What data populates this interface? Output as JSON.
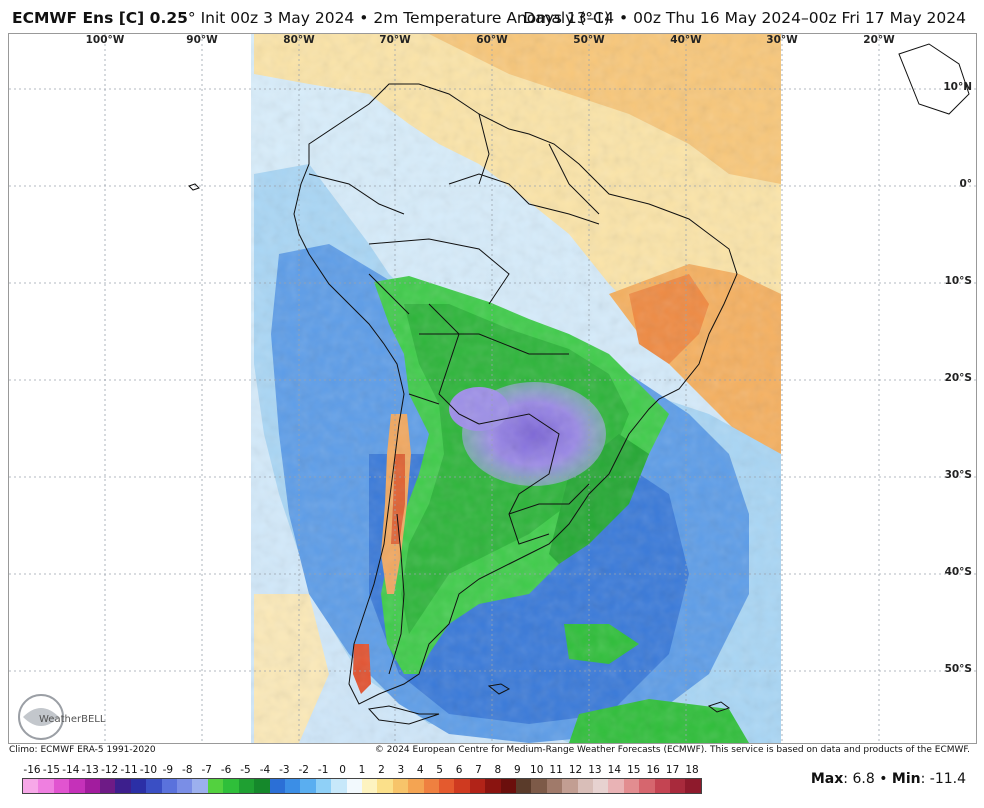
{
  "header": {
    "model": "ECMWF Ens [C] 0.25",
    "degree_symbol": "°",
    "init": "Init 00z 3 May 2024",
    "bullet": "•",
    "variable": "2m Temperature Anomaly (°C)",
    "days": "Days 13–14",
    "valid": "00z Thu 16 May 2024–00z Fri 17 May 2024"
  },
  "map": {
    "region": "South America",
    "longitude_labels": [
      "100°W",
      "90°W",
      "80°W",
      "70°W",
      "60°W",
      "50°W",
      "40°W",
      "30°W",
      "20°W"
    ],
    "latitude_labels": [
      "10°N",
      "0°",
      "10°S",
      "20°S",
      "30°S",
      "40°S",
      "50°S"
    ],
    "colors": {
      "cold_strong": "#8f7ae0",
      "cold_green": "#2fc43a",
      "cool_blue": "#3b7fe0",
      "near_zero": "#d7ecfb",
      "warm": "#f7b462",
      "hot": "#e0431e",
      "land_border": "#111111"
    }
  },
  "footer": {
    "climo": "Climo: ECMWF ERA-5 1991-2020",
    "copyright": "© 2024 European Centre for Medium-Range Weather Forecasts (ECMWF). This service is based on data and products of the ECMWF."
  },
  "legend": {
    "ticks": [
      "-16",
      "-15",
      "-14",
      "-13",
      "-12",
      "-11",
      "-10",
      "-9",
      "-8",
      "-7",
      "-6",
      "-5",
      "-4",
      "-3",
      "-2",
      "-1",
      "0",
      "1",
      "2",
      "3",
      "4",
      "5",
      "6",
      "7",
      "8",
      "9",
      "10",
      "11",
      "12",
      "13",
      "14",
      "15",
      "16",
      "17",
      "18"
    ],
    "colors": [
      "#f7a8e8",
      "#ef7fe0",
      "#e154d0",
      "#c531b9",
      "#a21c9e",
      "#6e1b86",
      "#3d1f8d",
      "#2b2fa6",
      "#3a4fc4",
      "#5a72dc",
      "#7a8ee6",
      "#9cb0ee",
      "#53d13f",
      "#2fbf3a",
      "#1fa032",
      "#15882b",
      "#2b6fd6",
      "#3b8ee6",
      "#5aaef0",
      "#8fd0f7",
      "#c7e8fa",
      "#f2f9fd",
      "#fdf3c0",
      "#fbe08a",
      "#f7c46a",
      "#f4a452",
      "#ef8040",
      "#e45a2e",
      "#cf3a20",
      "#b12318",
      "#8a1410",
      "#6b0f0c",
      "#5a3b2a",
      "#7d5a48",
      "#a07a6a",
      "#c29e92",
      "#d9beb8",
      "#e7d2d0",
      "#e9b3b5",
      "#e28d90",
      "#d6666e",
      "#c44452",
      "#a82a3c",
      "#8e1a2c"
    ]
  },
  "stats": {
    "max_label": "Max",
    "max_value": ": 6.8",
    "min_label": "Min",
    "min_value": ": -11.4",
    "bullet": "•"
  },
  "logo": {
    "text": "WeatherBELL"
  }
}
